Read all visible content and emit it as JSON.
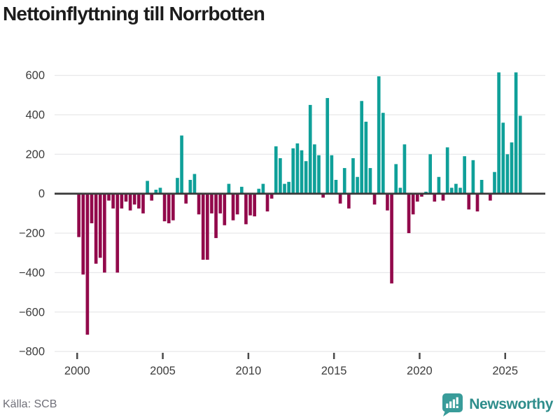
{
  "header": {
    "title": "Nettoinflyttning till Norrbotten"
  },
  "footer": {
    "source_label": "Källa: SCB",
    "brand_name": "Newsworthy"
  },
  "colors": {
    "positive_teal": "#0fa099",
    "negative_red": "#92094b",
    "gridline": "#e8e8ea",
    "zero_axis": "#3b3b3b",
    "tick_label": "#3d3d3d",
    "title_text": "#1c1c1c",
    "source_text": "#6f6f78",
    "brand_teal": "#2e8d8b",
    "brand_icon_teal": "#399c9a"
  },
  "chart_data": {
    "type": "bar",
    "title": "Nettoinflyttning till Norrbotten",
    "frequency": "quarterly",
    "series_start": "2000-Q1",
    "series_end": "2025-Q4",
    "xlabel": "",
    "ylabel": "",
    "ylim": [
      -800,
      660
    ],
    "grid": true,
    "x_ticks": [
      2000,
      2005,
      2010,
      2015,
      2020,
      2025
    ],
    "y_ticks": [
      600,
      400,
      200,
      0,
      -200,
      -400,
      -600,
      -800
    ],
    "years": [
      {
        "year": 2000,
        "values": [
          -220,
          -410,
          -715,
          -150
        ]
      },
      {
        "year": 2001,
        "values": [
          -355,
          -325,
          -400,
          -35
        ]
      },
      {
        "year": 2002,
        "values": [
          -75,
          -400,
          -75,
          -40
        ]
      },
      {
        "year": 2003,
        "values": [
          -85,
          -55,
          -75,
          -100
        ]
      },
      {
        "year": 2004,
        "values": [
          65,
          -35,
          20,
          30
        ]
      },
      {
        "year": 2005,
        "values": [
          -140,
          -150,
          -135,
          80
        ]
      },
      {
        "year": 2006,
        "values": [
          295,
          -50,
          70,
          100
        ]
      },
      {
        "year": 2007,
        "values": [
          -105,
          -335,
          -335,
          -100
        ]
      },
      {
        "year": 2008,
        "values": [
          -225,
          -100,
          -160,
          50
        ]
      },
      {
        "year": 2009,
        "values": [
          -135,
          -105,
          35,
          -155
        ]
      },
      {
        "year": 2010,
        "values": [
          -110,
          -115,
          25,
          50
        ]
      },
      {
        "year": 2011,
        "values": [
          -90,
          -25,
          240,
          180
        ]
      },
      {
        "year": 2012,
        "values": [
          50,
          60,
          230,
          255
        ]
      },
      {
        "year": 2013,
        "values": [
          220,
          165,
          450,
          250
        ]
      },
      {
        "year": 2014,
        "values": [
          195,
          -20,
          485,
          195
        ]
      },
      {
        "year": 2015,
        "values": [
          70,
          -50,
          130,
          -75
        ]
      },
      {
        "year": 2016,
        "values": [
          180,
          85,
          470,
          365
        ]
      },
      {
        "year": 2017,
        "values": [
          130,
          -55,
          595,
          410
        ]
      },
      {
        "year": 2018,
        "values": [
          -85,
          -455,
          150,
          30
        ]
      },
      {
        "year": 2019,
        "values": [
          250,
          -200,
          -105,
          -40
        ]
      },
      {
        "year": 2020,
        "values": [
          -15,
          10,
          200,
          -40
        ]
      },
      {
        "year": 2021,
        "values": [
          85,
          -35,
          235,
          30
        ]
      },
      {
        "year": 2022,
        "values": [
          50,
          30,
          190,
          -80
        ]
      },
      {
        "year": 2023,
        "values": [
          170,
          -90,
          70,
          0
        ]
      },
      {
        "year": 2024,
        "values": [
          -35,
          110,
          615,
          360
        ]
      },
      {
        "year": 2025,
        "values": [
          200,
          260,
          615,
          395
        ]
      }
    ]
  }
}
